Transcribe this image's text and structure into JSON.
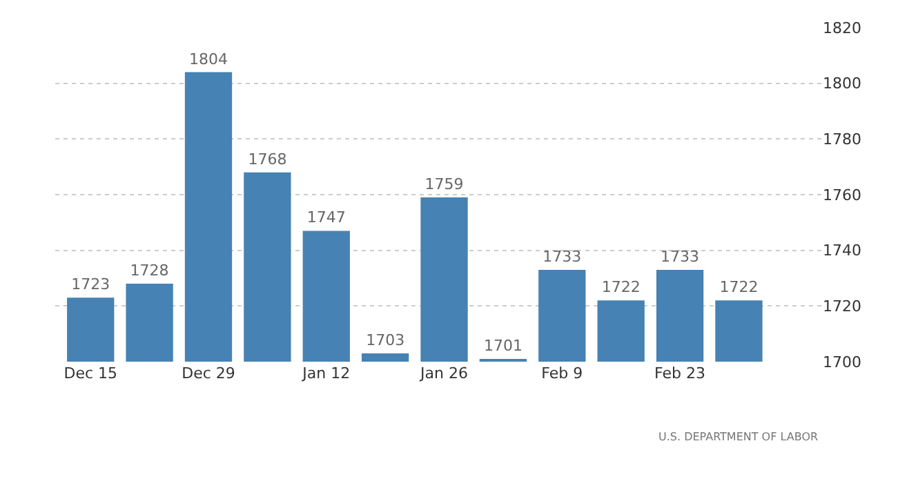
{
  "chart_data": {
    "type": "bar",
    "categories": [
      "Dec 15",
      null,
      "Dec 29",
      null,
      "Jan 12",
      null,
      "Jan 26",
      null,
      "Feb 9",
      null,
      "Feb 23",
      null
    ],
    "values": [
      1723,
      1728,
      1804,
      1768,
      1747,
      1703,
      1759,
      1701,
      1733,
      1722,
      1733,
      1722
    ],
    "color": "#4682b4",
    "data_labels": true,
    "ylim": [
      1700,
      1820
    ],
    "yticks": [
      1700,
      1720,
      1740,
      1760,
      1780,
      1800,
      1820
    ],
    "grid": "y",
    "legend": false,
    "annotations": [
      "U.S. DEPARTMENT OF LABOR"
    ]
  }
}
